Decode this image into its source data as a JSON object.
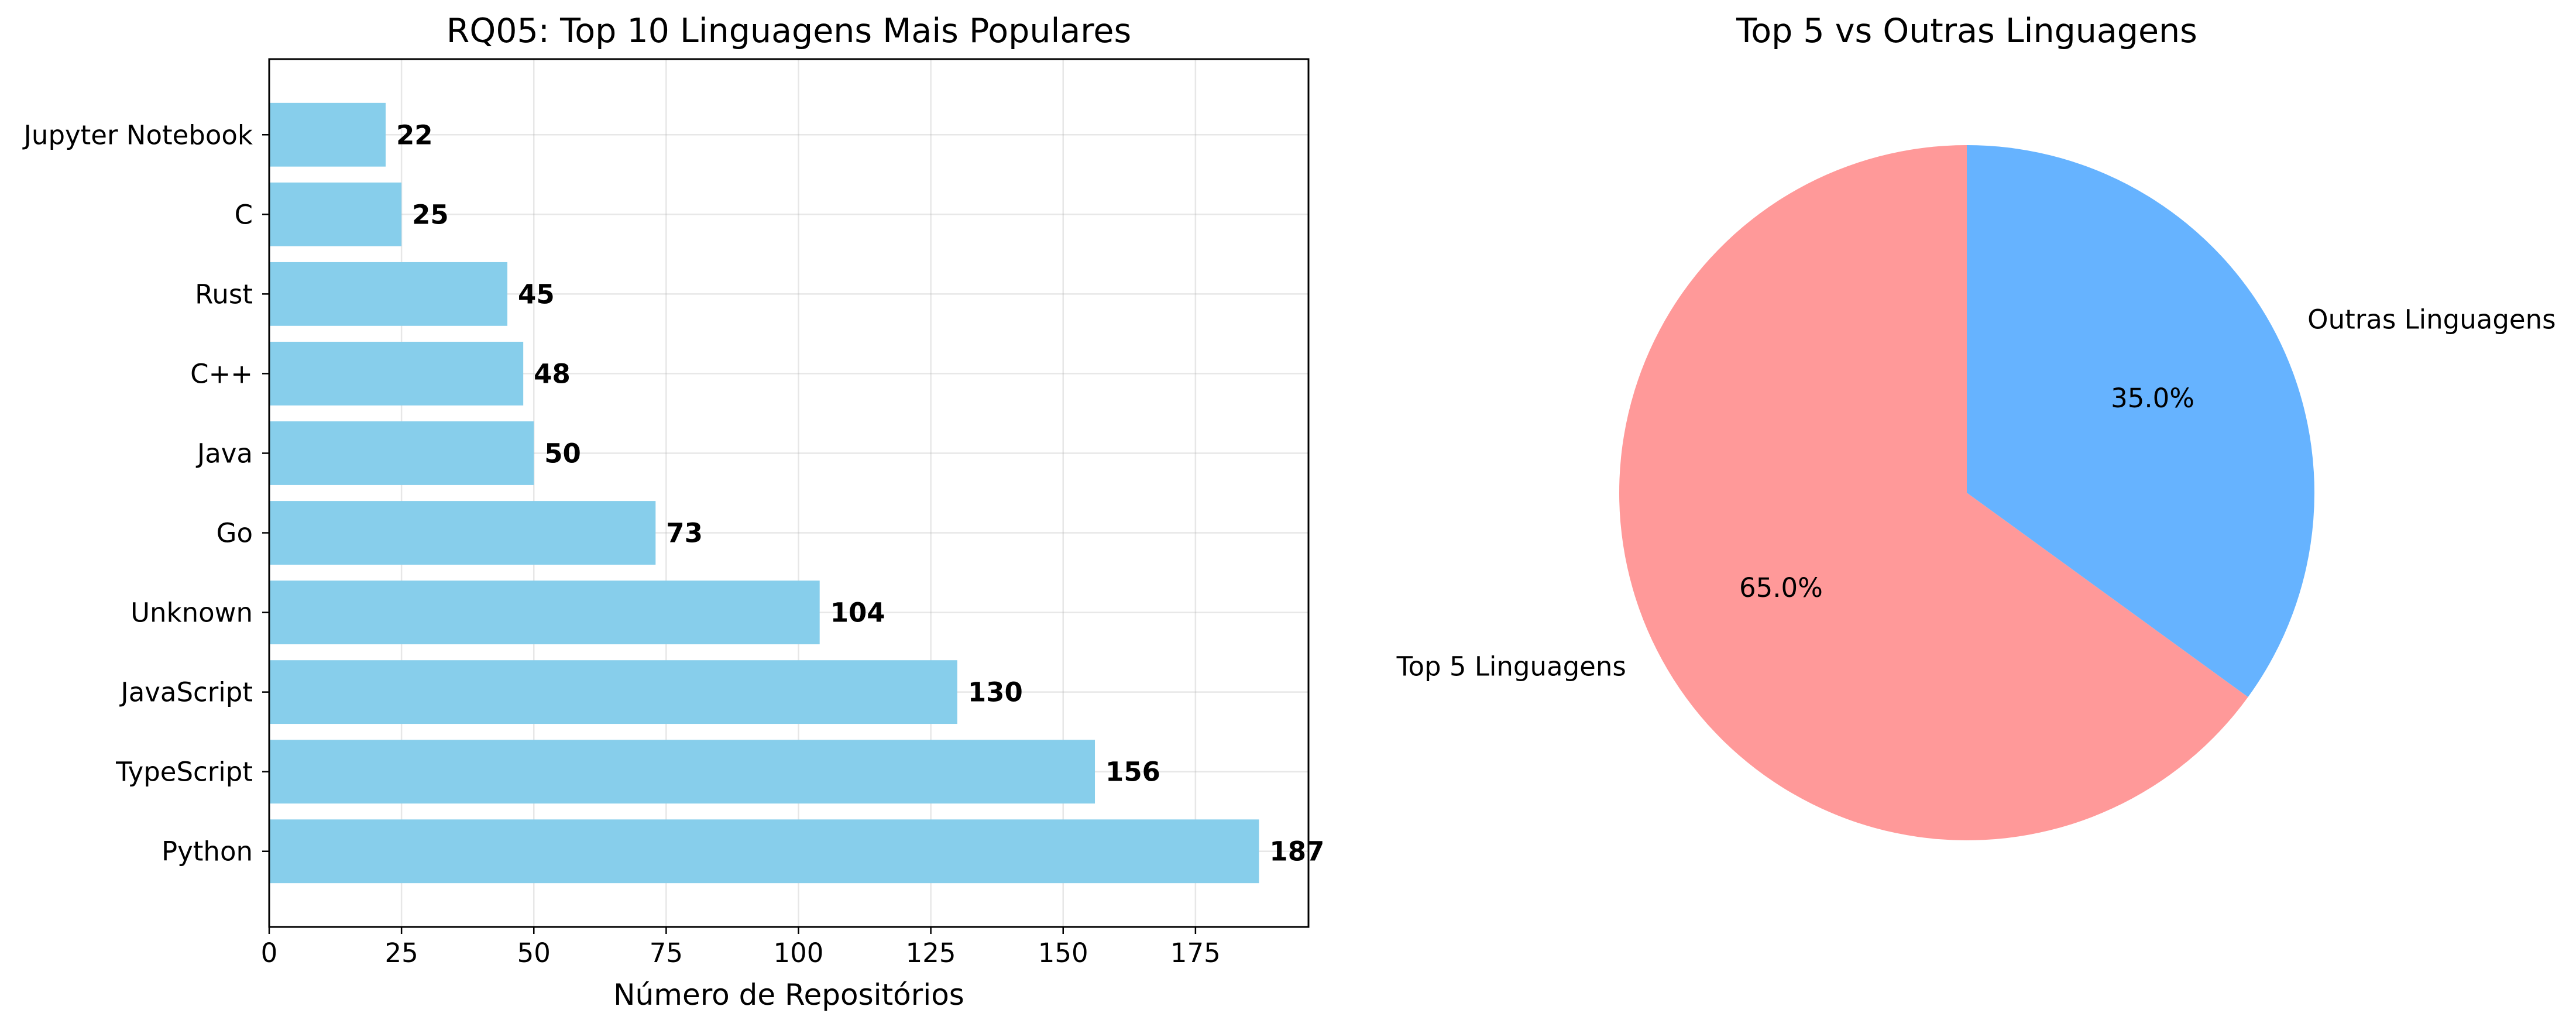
{
  "chart_data": [
    {
      "type": "bar",
      "orientation": "horizontal",
      "title": "RQ05: Top 10 Linguagens Mais Populares",
      "xlabel": "Número de Repositórios",
      "ylabel": "",
      "categories": [
        "Python",
        "TypeScript",
        "JavaScript",
        "Unknown",
        "Go",
        "Java",
        "C++",
        "Rust",
        "C",
        "Jupyter Notebook"
      ],
      "values": [
        187,
        156,
        130,
        104,
        73,
        50,
        48,
        45,
        25,
        22
      ],
      "data_labels": [
        "187",
        "156",
        "130",
        "104",
        "73",
        "50",
        "48",
        "45",
        "25",
        "22"
      ],
      "xticks": [
        0,
        25,
        50,
        75,
        100,
        125,
        150,
        175
      ],
      "xtick_labels": [
        "0",
        "25",
        "50",
        "75",
        "100",
        "125",
        "150",
        "175"
      ],
      "xlim": [
        0,
        196.35
      ],
      "grid": true,
      "bar_color": "#87ceeb"
    },
    {
      "type": "pie",
      "title": "Top 5 vs Outras Linguagens",
      "labels": [
        "Top 5 Linguagens",
        "Outras Linguagens"
      ],
      "values": [
        65.0,
        35.0
      ],
      "pct_labels": [
        "65.0%",
        "35.0%"
      ],
      "colors": [
        "#ff9999",
        "#66b3ff"
      ],
      "start_angle": 90
    }
  ]
}
